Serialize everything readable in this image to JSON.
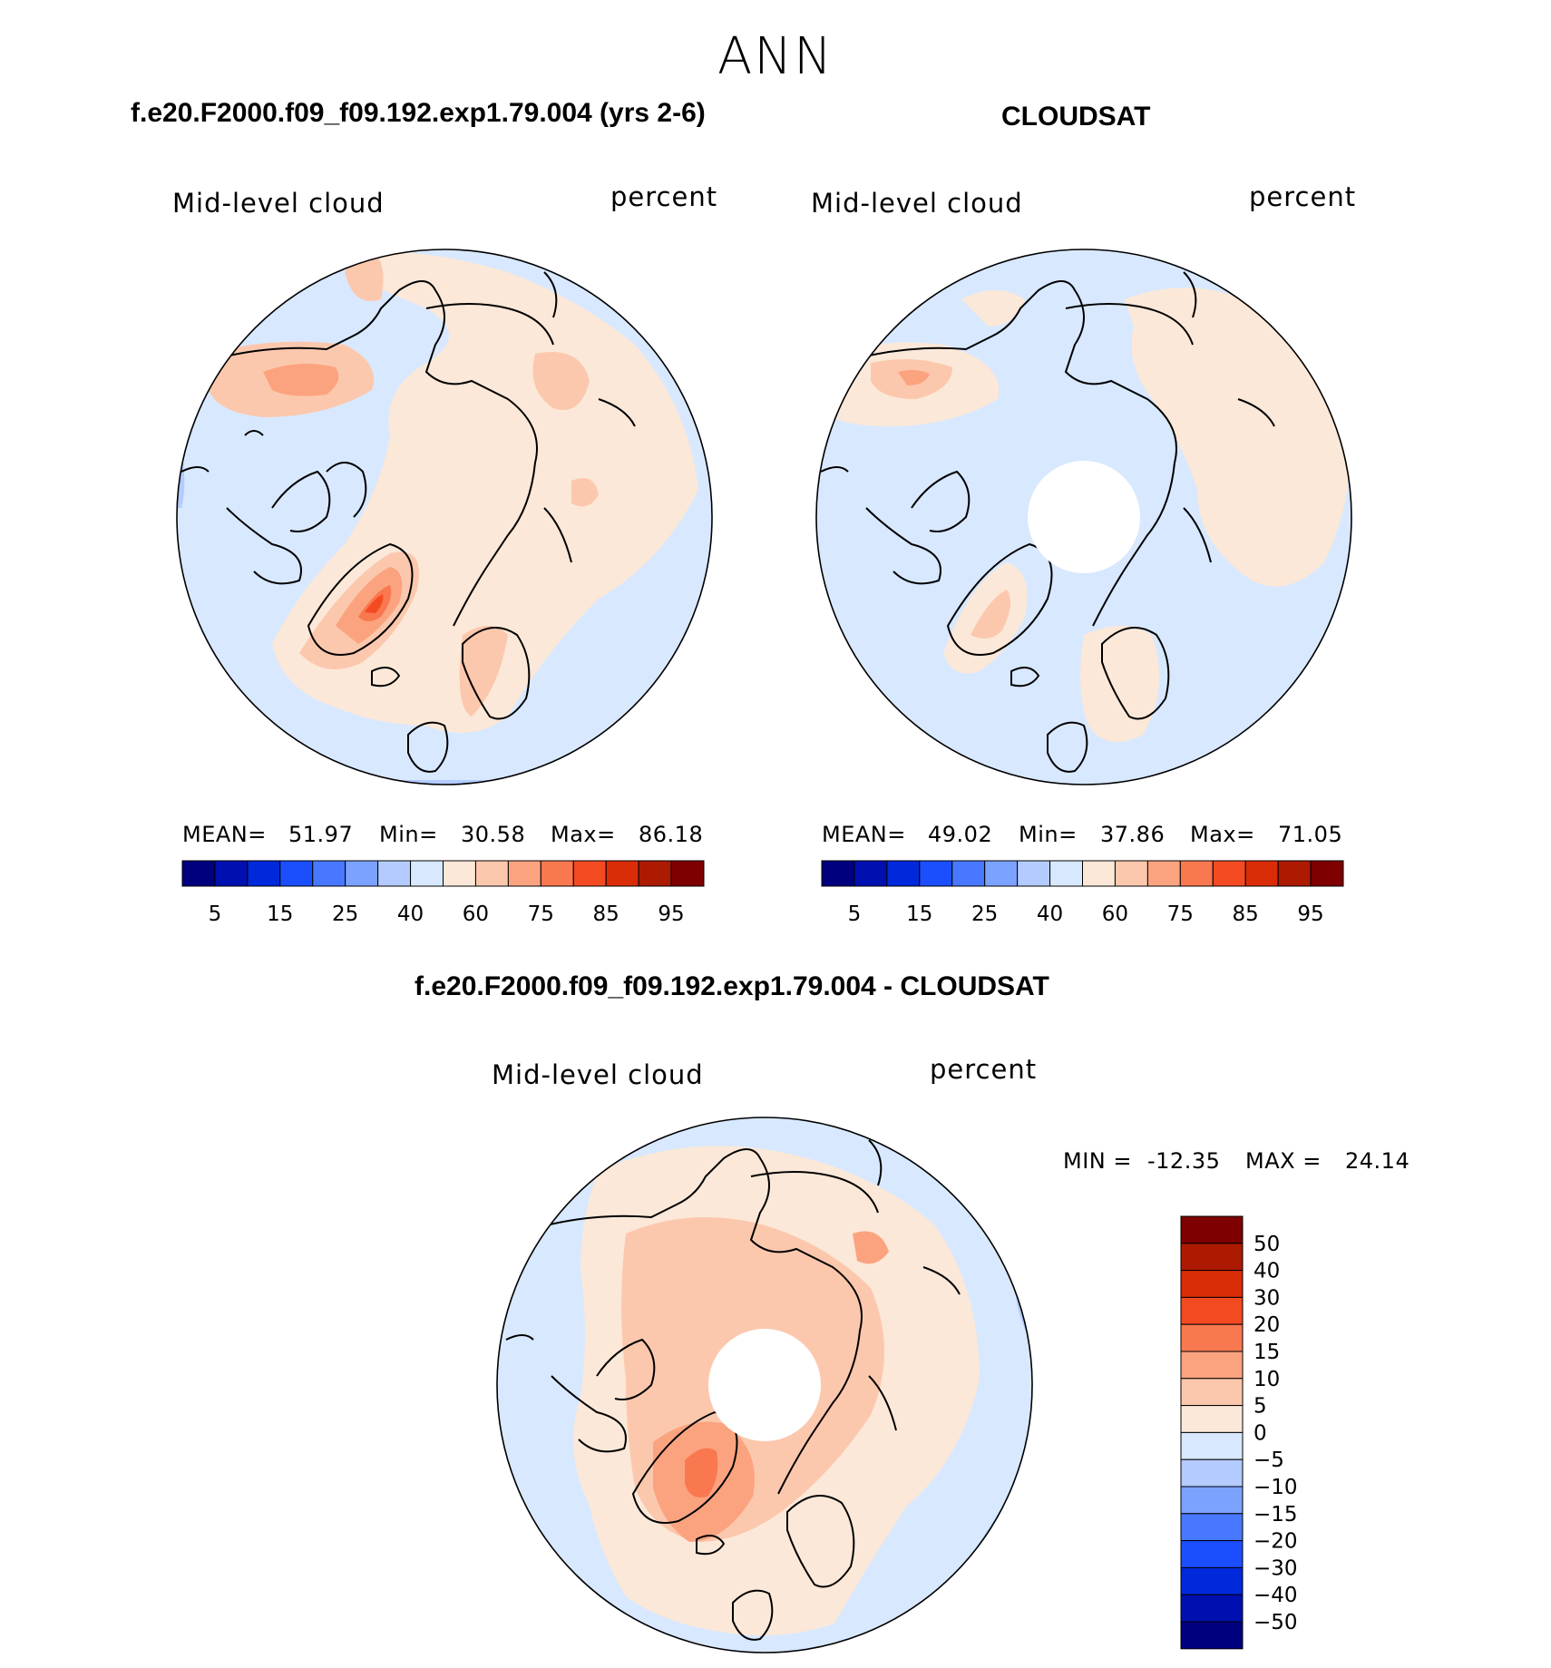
{
  "page": {
    "season": "ANN"
  },
  "chart_data": [
    {
      "type": "heatmap",
      "projection": "north polar stereographic",
      "title": "f.e20.F2000.f09_f09.192.exp1.79.004 (yrs 2-6)",
      "variable": "Mid-level cloud",
      "units": "percent",
      "stats": {
        "mean_label": "MEAN=",
        "mean": "51.97",
        "min_label": "Min=",
        "min": "30.58",
        "max_label": "Max=",
        "max": "86.18"
      },
      "colorbar": {
        "orientation": "horizontal",
        "levels": [
          5,
          10,
          15,
          20,
          25,
          30,
          40,
          50,
          60,
          70,
          75,
          80,
          85,
          90,
          95
        ],
        "tick_labels": [
          "5",
          "15",
          "25",
          "40",
          "60",
          "75",
          "85",
          "95"
        ],
        "colors": [
          "#00007f",
          "#0010b0",
          "#0029db",
          "#1b4eff",
          "#4878ff",
          "#7ba2ff",
          "#b3cbff",
          "#d8e8ff",
          "#fbe8d8",
          "#fcc8ad",
          "#fba37f",
          "#f9784f",
          "#f44a22",
          "#db2c08",
          "#ad1a02",
          "#7f0000"
        ]
      }
    },
    {
      "type": "heatmap",
      "projection": "north polar stereographic",
      "title": "CLOUDSAT",
      "variable": "Mid-level cloud",
      "units": "percent",
      "stats": {
        "mean_label": "MEAN=",
        "mean": "49.02",
        "min_label": "Min=",
        "min": "37.86",
        "max_label": "Max=",
        "max": "71.05"
      },
      "colorbar": {
        "orientation": "horizontal",
        "levels": [
          5,
          10,
          15,
          20,
          25,
          30,
          40,
          50,
          60,
          70,
          75,
          80,
          85,
          90,
          95
        ],
        "tick_labels": [
          "5",
          "15",
          "25",
          "40",
          "60",
          "75",
          "85",
          "95"
        ],
        "colors": [
          "#00007f",
          "#0010b0",
          "#0029db",
          "#1b4eff",
          "#4878ff",
          "#7ba2ff",
          "#b3cbff",
          "#d8e8ff",
          "#fbe8d8",
          "#fcc8ad",
          "#fba37f",
          "#f9784f",
          "#f44a22",
          "#db2c08",
          "#ad1a02",
          "#7f0000"
        ]
      }
    },
    {
      "type": "heatmap",
      "projection": "north polar stereographic",
      "title": "f.e20.F2000.f09_f09.192.exp1.79.004 - CLOUDSAT",
      "variable": "Mid-level cloud",
      "units": "percent",
      "stats": {
        "min_label": "MIN =",
        "min": "-12.35",
        "max_label": "MAX =",
        "max": "24.14"
      },
      "colorbar": {
        "orientation": "vertical",
        "levels": [
          50,
          40,
          30,
          20,
          15,
          10,
          5,
          0,
          -5,
          -10,
          -15,
          -20,
          -30,
          -40,
          -50
        ],
        "tick_labels": [
          "50",
          "40",
          "30",
          "20",
          "15",
          "10",
          "5",
          "0",
          "−5",
          "−10",
          "−15",
          "−20",
          "−30",
          "−40",
          "−50"
        ],
        "colors_top_to_bottom": [
          "#7f0000",
          "#ad1a02",
          "#db2c08",
          "#f44a22",
          "#f9784f",
          "#fba37f",
          "#fcc8ad",
          "#fbe8d8",
          "#d8e8ff",
          "#b3cbff",
          "#7ba2ff",
          "#4878ff",
          "#1b4eff",
          "#0029db",
          "#0010b0",
          "#00007f"
        ]
      }
    }
  ]
}
